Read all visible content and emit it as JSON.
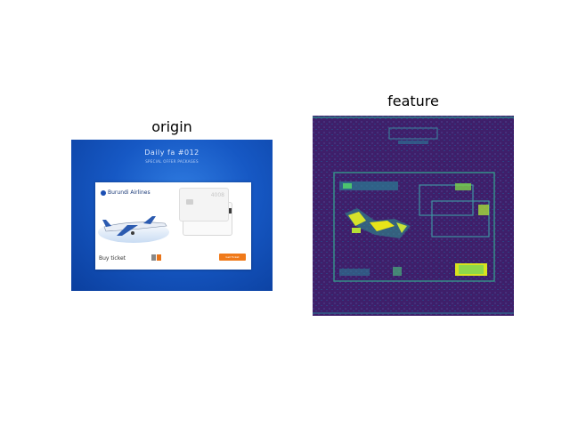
{
  "panels": {
    "origin_title": "origin",
    "feature_title": "feature"
  },
  "origin_image": {
    "hero_title": "Daily fa #012",
    "hero_subtitle": "SPECIAL OFFER PACKAGES",
    "brand_name": "Burundi Airlines",
    "buy_label": "Buy ticket",
    "pay_button_label": "Get Ticket",
    "card_text": "4008",
    "colors": {
      "hero_blue": "#1658c4",
      "accent_orange": "#f07a1a"
    }
  },
  "feature_image": {
    "colormap": "viridis",
    "background_color": "#3d1f66"
  }
}
